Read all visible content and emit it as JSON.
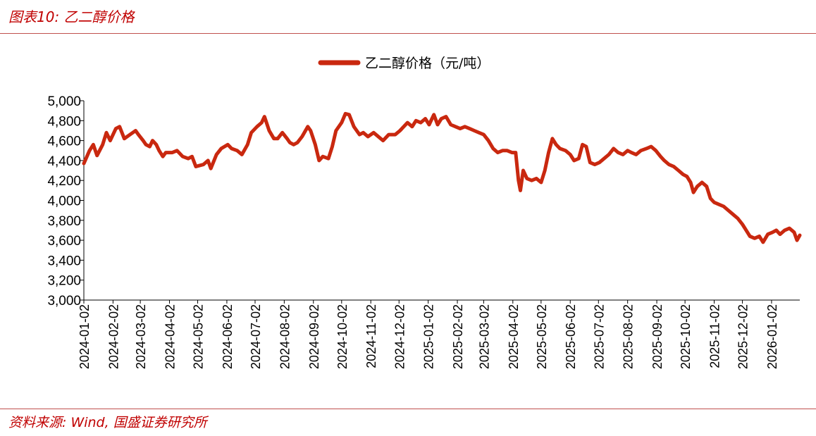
{
  "header": {
    "title": "图表10:  乙二醇价格"
  },
  "footer": {
    "source": "资料来源:  Wind, 国盛证券研究所"
  },
  "chart_data": {
    "type": "line",
    "title": "",
    "xlabel": "",
    "ylabel": "",
    "ylim": [
      3000,
      5000
    ],
    "yticks": [
      "3,000",
      "3,200",
      "3,400",
      "3,600",
      "3,800",
      "4,000",
      "4,200",
      "4,400",
      "4,600",
      "4,800",
      "5,000"
    ],
    "x_ticks": [
      "2024-01-02",
      "2024-02-02",
      "2024-03-02",
      "2024-04-02",
      "2024-05-02",
      "2024-06-02",
      "2024-07-02",
      "2024-08-02",
      "2024-09-02",
      "2024-10-02",
      "2024-11-02",
      "2024-12-02",
      "2025-01-02",
      "2025-02-02",
      "2025-03-02",
      "2025-04-02",
      "2025-05-02",
      "2025-06-02",
      "2025-07-02",
      "2025-08-02",
      "2025-09-02",
      "2025-10-02",
      "2025-11-02",
      "2025-12-02",
      "2026-01-02"
    ],
    "legend_position": "top-center",
    "grid": false,
    "color": "#c9280f",
    "series": [
      {
        "name": "乙二醇价格（元/吨）",
        "points": [
          [
            "2024-01-02",
            4370
          ],
          [
            "2024-01-08",
            4500
          ],
          [
            "2024-01-12",
            4560
          ],
          [
            "2024-01-16",
            4450
          ],
          [
            "2024-01-22",
            4560
          ],
          [
            "2024-01-26",
            4680
          ],
          [
            "2024-01-30",
            4600
          ],
          [
            "2024-02-05",
            4720
          ],
          [
            "2024-02-09",
            4740
          ],
          [
            "2024-02-14",
            4620
          ],
          [
            "2024-02-20",
            4660
          ],
          [
            "2024-02-26",
            4700
          ],
          [
            "2024-02-29",
            4660
          ],
          [
            "2024-03-05",
            4600
          ],
          [
            "2024-03-08",
            4560
          ],
          [
            "2024-03-12",
            4540
          ],
          [
            "2024-03-15",
            4600
          ],
          [
            "2024-03-19",
            4560
          ],
          [
            "2024-03-22",
            4500
          ],
          [
            "2024-03-26",
            4440
          ],
          [
            "2024-03-29",
            4480
          ],
          [
            "2024-04-05",
            4480
          ],
          [
            "2024-04-10",
            4500
          ],
          [
            "2024-04-16",
            4440
          ],
          [
            "2024-04-22",
            4420
          ],
          [
            "2024-04-26",
            4440
          ],
          [
            "2024-04-30",
            4340
          ],
          [
            "2024-05-08",
            4360
          ],
          [
            "2024-05-13",
            4400
          ],
          [
            "2024-05-16",
            4320
          ],
          [
            "2024-05-22",
            4460
          ],
          [
            "2024-05-27",
            4520
          ],
          [
            "2024-06-03",
            4560
          ],
          [
            "2024-06-07",
            4520
          ],
          [
            "2024-06-13",
            4500
          ],
          [
            "2024-06-18",
            4460
          ],
          [
            "2024-06-24",
            4560
          ],
          [
            "2024-06-28",
            4680
          ],
          [
            "2024-07-04",
            4740
          ],
          [
            "2024-07-09",
            4780
          ],
          [
            "2024-07-12",
            4840
          ],
          [
            "2024-07-17",
            4700
          ],
          [
            "2024-07-22",
            4620
          ],
          [
            "2024-07-26",
            4620
          ],
          [
            "2024-07-31",
            4680
          ],
          [
            "2024-08-05",
            4620
          ],
          [
            "2024-08-08",
            4580
          ],
          [
            "2024-08-12",
            4560
          ],
          [
            "2024-08-16",
            4580
          ],
          [
            "2024-08-21",
            4640
          ],
          [
            "2024-08-27",
            4740
          ],
          [
            "2024-08-30",
            4700
          ],
          [
            "2024-09-04",
            4560
          ],
          [
            "2024-09-08",
            4400
          ],
          [
            "2024-09-12",
            4440
          ],
          [
            "2024-09-18",
            4420
          ],
          [
            "2024-09-22",
            4540
          ],
          [
            "2024-09-26",
            4700
          ],
          [
            "2024-10-02",
            4780
          ],
          [
            "2024-10-06",
            4870
          ],
          [
            "2024-10-10",
            4860
          ],
          [
            "2024-10-15",
            4740
          ],
          [
            "2024-10-21",
            4660
          ],
          [
            "2024-10-25",
            4680
          ],
          [
            "2024-10-30",
            4640
          ],
          [
            "2024-11-05",
            4680
          ],
          [
            "2024-11-10",
            4640
          ],
          [
            "2024-11-15",
            4600
          ],
          [
            "2024-11-21",
            4660
          ],
          [
            "2024-11-28",
            4660
          ],
          [
            "2024-12-03",
            4700
          ],
          [
            "2024-12-07",
            4740
          ],
          [
            "2024-12-11",
            4780
          ],
          [
            "2024-12-16",
            4740
          ],
          [
            "2024-12-20",
            4800
          ],
          [
            "2024-12-25",
            4780
          ],
          [
            "2024-12-30",
            4820
          ],
          [
            "2025-01-03",
            4760
          ],
          [
            "2025-01-08",
            4860
          ],
          [
            "2025-01-12",
            4760
          ],
          [
            "2025-01-16",
            4820
          ],
          [
            "2025-01-21",
            4840
          ],
          [
            "2025-01-26",
            4760
          ],
          [
            "2025-01-31",
            4740
          ],
          [
            "2025-02-05",
            4720
          ],
          [
            "2025-02-10",
            4740
          ],
          [
            "2025-02-15",
            4720
          ],
          [
            "2025-02-20",
            4700
          ],
          [
            "2025-02-25",
            4680
          ],
          [
            "2025-03-02",
            4660
          ],
          [
            "2025-03-07",
            4600
          ],
          [
            "2025-03-12",
            4520
          ],
          [
            "2025-03-17",
            4480
          ],
          [
            "2025-03-22",
            4500
          ],
          [
            "2025-03-27",
            4500
          ],
          [
            "2025-04-01",
            4480
          ],
          [
            "2025-04-05",
            4480
          ],
          [
            "2025-04-08",
            4200
          ],
          [
            "2025-04-10",
            4100
          ],
          [
            "2025-04-13",
            4300
          ],
          [
            "2025-04-17",
            4220
          ],
          [
            "2025-04-22",
            4200
          ],
          [
            "2025-04-27",
            4220
          ],
          [
            "2025-05-02",
            4180
          ],
          [
            "2025-05-06",
            4300
          ],
          [
            "2025-05-10",
            4480
          ],
          [
            "2025-05-14",
            4620
          ],
          [
            "2025-05-18",
            4560
          ],
          [
            "2025-05-22",
            4520
          ],
          [
            "2025-05-28",
            4500
          ],
          [
            "2025-06-02",
            4460
          ],
          [
            "2025-06-06",
            4400
          ],
          [
            "2025-06-11",
            4420
          ],
          [
            "2025-06-15",
            4560
          ],
          [
            "2025-06-19",
            4540
          ],
          [
            "2025-06-23",
            4380
          ],
          [
            "2025-06-28",
            4360
          ],
          [
            "2025-07-03",
            4380
          ],
          [
            "2025-07-08",
            4420
          ],
          [
            "2025-07-13",
            4460
          ],
          [
            "2025-07-18",
            4520
          ],
          [
            "2025-07-23",
            4480
          ],
          [
            "2025-07-28",
            4460
          ],
          [
            "2025-08-02",
            4500
          ],
          [
            "2025-08-06",
            4480
          ],
          [
            "2025-08-11",
            4460
          ],
          [
            "2025-08-16",
            4500
          ],
          [
            "2025-08-22",
            4520
          ],
          [
            "2025-08-27",
            4540
          ],
          [
            "2025-09-01",
            4500
          ],
          [
            "2025-09-06",
            4440
          ],
          [
            "2025-09-10",
            4400
          ],
          [
            "2025-09-15",
            4360
          ],
          [
            "2025-09-20",
            4340
          ],
          [
            "2025-09-25",
            4300
          ],
          [
            "2025-09-30",
            4260
          ],
          [
            "2025-10-04",
            4240
          ],
          [
            "2025-10-08",
            4180
          ],
          [
            "2025-10-11",
            4080
          ],
          [
            "2025-10-15",
            4140
          ],
          [
            "2025-10-20",
            4180
          ],
          [
            "2025-10-25",
            4140
          ],
          [
            "2025-10-29",
            4020
          ],
          [
            "2025-11-02",
            3980
          ],
          [
            "2025-11-07",
            3960
          ],
          [
            "2025-11-12",
            3940
          ],
          [
            "2025-11-17",
            3900
          ],
          [
            "2025-11-22",
            3860
          ],
          [
            "2025-11-27",
            3820
          ],
          [
            "2025-12-02",
            3760
          ],
          [
            "2025-12-06",
            3700
          ],
          [
            "2025-12-10",
            3640
          ],
          [
            "2025-12-15",
            3620
          ],
          [
            "2025-12-20",
            3640
          ],
          [
            "2025-12-24",
            3580
          ],
          [
            "2025-12-29",
            3660
          ],
          [
            "2026-01-03",
            3680
          ],
          [
            "2026-01-07",
            3700
          ],
          [
            "2026-01-11",
            3660
          ],
          [
            "2026-01-16",
            3700
          ],
          [
            "2026-01-21",
            3720
          ],
          [
            "2026-01-26",
            3680
          ],
          [
            "2026-01-29",
            3600
          ],
          [
            "2026-02-01",
            3650
          ]
        ]
      }
    ]
  }
}
